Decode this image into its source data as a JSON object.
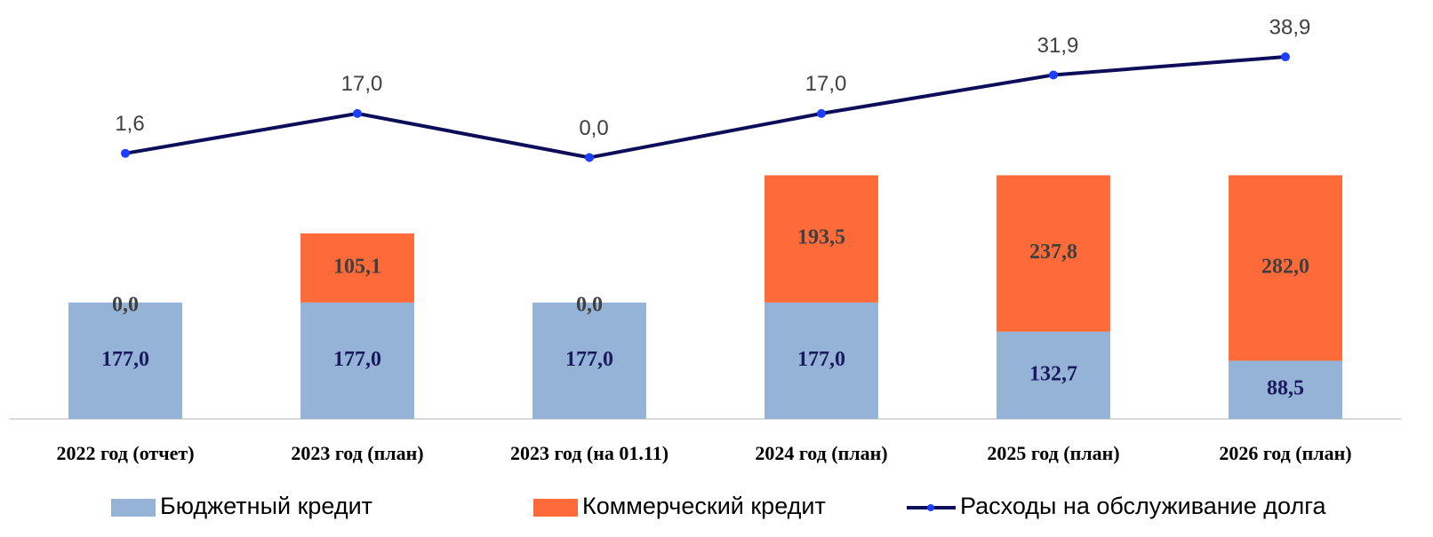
{
  "chart_data": {
    "type": "bar",
    "stacked": true,
    "categories": [
      "2022 год (отчет)",
      "2023 год (план)",
      "2023 год (на 01.11)",
      "2024 год (план)",
      "2025 год (план)",
      "2026 год (план)"
    ],
    "series": [
      {
        "name": "Бюджетный кредит",
        "color": "#95b3d7",
        "label_color": "#1a1a5e",
        "values": [
          177.0,
          177.0,
          177.0,
          177.0,
          132.7,
          88.5
        ],
        "value_labels": [
          "177,0",
          "177,0",
          "177,0",
          "177,0",
          "132,7",
          "88,5"
        ]
      },
      {
        "name": "Коммерческий кредит",
        "color": "#fe6a38",
        "label_color": "#404040",
        "values": [
          0.0,
          105.1,
          0.0,
          193.5,
          237.8,
          282.0
        ],
        "value_labels": [
          "0,0",
          "105,1",
          "0,0",
          "193,5",
          "237,8",
          "282,0"
        ]
      },
      {
        "name": "Расходы на обслуживание долга",
        "type": "line",
        "axis": "y2",
        "color": "#0d0d5a",
        "marker_color": "#1f3fff",
        "values": [
          1.6,
          17.0,
          0.0,
          17.0,
          31.9,
          38.9
        ],
        "value_labels": [
          "1,6",
          "17,0",
          "0,0",
          "17,0",
          "31,9",
          "38,9"
        ]
      }
    ],
    "ylim": [
      0,
      610
    ],
    "y2lim": [
      -101,
      54
    ],
    "legend": "bottom"
  }
}
